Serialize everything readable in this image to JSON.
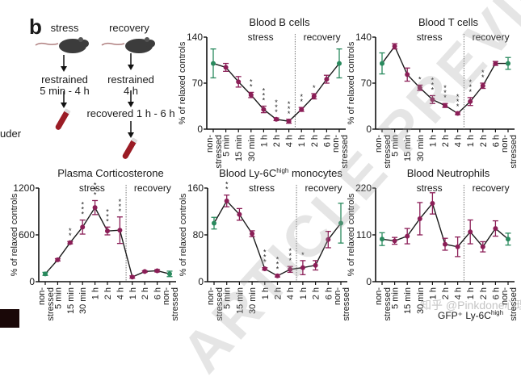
{
  "figure": {
    "panel_letter": "b",
    "left_fragment": "uder",
    "schematic": {
      "stress": {
        "title": "stress",
        "step1": "restrained",
        "step1_detail": "5 min - 4 h"
      },
      "recovery": {
        "title": "recovery",
        "step1": "restrained",
        "step1_detail": "4 h",
        "step2": "recovered 1 h - 6 h"
      }
    },
    "watermark": "ARTICLE PREVIEW",
    "zh_watermark": "知乎 @Pinkdone心理咨询...",
    "footer_label": "GFP⁺ Ly-6C",
    "footer_label_sup": "high",
    "colors": {
      "stress": "#8b1e57",
      "control": "#2a8a5e",
      "line": "#1a1a1a",
      "divider": "#777777"
    }
  },
  "chart_data": [
    {
      "type": "line",
      "id": "bcells",
      "title": "Blood B cells",
      "title_sup": "",
      "title_suffix": "",
      "ylabel": "% of relaxed controls",
      "ylim": [
        0,
        140
      ],
      "yticks": [
        "0",
        "70",
        "140"
      ],
      "ytick_values": [
        0,
        70,
        140
      ],
      "region_labels": [
        "stress",
        "recovery"
      ],
      "categories": [
        "non-\nstressed",
        "5 min",
        "15 min",
        "30 min",
        "1 h",
        "2 h",
        "4 h",
        "1 h",
        "2 h",
        "6 h",
        "non-\nstressed"
      ],
      "values": [
        100,
        94,
        72,
        52,
        30,
        15,
        12,
        30,
        50,
        76,
        100
      ],
      "errors": [
        22,
        6,
        8,
        4,
        5,
        2,
        3,
        3,
        4,
        6,
        22
      ],
      "significance": [
        "",
        "",
        "",
        "**",
        "***",
        "***",
        "***",
        "**",
        "*",
        "",
        ""
      ],
      "groups": [
        "control",
        "stress",
        "stress",
        "stress",
        "stress",
        "stress",
        "stress",
        "stress",
        "stress",
        "stress",
        "control"
      ]
    },
    {
      "type": "line",
      "id": "tcells",
      "title": "Blood T cells",
      "title_sup": "",
      "title_suffix": "",
      "ylabel": "% of relaxed controls",
      "ylim": [
        0,
        140
      ],
      "yticks": [
        "0",
        "70",
        "140"
      ],
      "ytick_values": [
        0,
        70,
        140
      ],
      "region_labels": [
        "stress",
        "recovery"
      ],
      "categories": [
        "non-\nstressed",
        "5 min",
        "15 min",
        "30 min",
        "1 h",
        "2 h",
        "4 h",
        "1 h",
        "2 h",
        "6 h",
        "non-\nstressed"
      ],
      "values": [
        100,
        126,
        83,
        63,
        45,
        36,
        24,
        42,
        66,
        100,
        100
      ],
      "errors": [
        16,
        4,
        10,
        4,
        6,
        3,
        2,
        6,
        4,
        3,
        9
      ],
      "significance": [
        "",
        "",
        "",
        "*",
        "***",
        "***",
        "***",
        "***",
        "**",
        "",
        ""
      ],
      "groups": [
        "control",
        "stress",
        "stress",
        "stress",
        "stress",
        "stress",
        "stress",
        "stress",
        "stress",
        "stress",
        "control"
      ]
    },
    {
      "type": "line",
      "id": "corticosterone",
      "title": "Plasma Corticosterone",
      "title_sup": "",
      "title_suffix": "",
      "ylabel": "% of relaxed controls",
      "ylim": [
        0,
        1200
      ],
      "yticks": [
        "0",
        "600",
        "1200"
      ],
      "ytick_values": [
        0,
        600,
        1200
      ],
      "region_labels": [
        "stress",
        "recovery"
      ],
      "categories": [
        "non-\nstressed",
        "5 min",
        "15 min",
        "30 min",
        "1 h",
        "2 h",
        "4 h",
        "1 h",
        "2 h",
        "6 h",
        "non-\nstressed"
      ],
      "values": [
        100,
        280,
        500,
        700,
        950,
        650,
        660,
        60,
        130,
        140,
        100
      ],
      "errors": [
        20,
        15,
        15,
        90,
        90,
        50,
        170,
        15,
        10,
        15,
        35
      ],
      "significance": [
        "",
        "",
        "**",
        "***",
        "***",
        "***",
        "***",
        "",
        "",
        "",
        ""
      ],
      "groups": [
        "control",
        "stress",
        "stress",
        "stress",
        "stress",
        "stress",
        "stress",
        "stress",
        "stress",
        "stress",
        "control"
      ]
    },
    {
      "type": "line",
      "id": "monocytes",
      "title": "Blood Ly-6C",
      "title_sup": "high",
      "title_suffix": " monocytes",
      "ylabel": "% of relaxed controls",
      "ylim": [
        0,
        160
      ],
      "yticks": [
        "0",
        "80",
        "160"
      ],
      "ytick_values": [
        0,
        80,
        160
      ],
      "region_labels": [
        "stress",
        "recovery"
      ],
      "categories": [
        "non-\nstressed",
        "5 min",
        "15 min",
        "30 min",
        "1 h",
        "2 h",
        "4 h",
        "1 h",
        "2 h",
        "6 h",
        "non-\nstressed"
      ],
      "values": [
        100,
        138,
        115,
        82,
        22,
        10,
        21,
        24,
        28,
        72,
        100
      ],
      "errors": [
        10,
        10,
        10,
        5,
        2,
        2,
        5,
        12,
        8,
        14,
        34
      ],
      "significance": [
        "",
        "**",
        "",
        "",
        "***",
        "***",
        "***",
        "*",
        "",
        "",
        ""
      ],
      "groups": [
        "control",
        "stress",
        "stress",
        "stress",
        "stress",
        "stress",
        "stress",
        "stress",
        "stress",
        "stress",
        "control"
      ]
    },
    {
      "type": "line",
      "id": "neutrophils",
      "title": "Blood Neutrophils",
      "title_sup": "",
      "title_suffix": "",
      "ylabel": "% of relaxed controls",
      "ylim": [
        0,
        220
      ],
      "yticks": [
        "0",
        "110",
        "220"
      ],
      "ytick_values": [
        0,
        110,
        220
      ],
      "region_labels": [
        "stress",
        "recovery"
      ],
      "categories": [
        "non-\nstressed",
        "5 min",
        "15 min",
        "30 min",
        "1 h",
        "2 h",
        "4 h",
        "1 h",
        "2 h",
        "6 h",
        "non-\nstressed"
      ],
      "values": [
        100,
        96,
        107,
        148,
        184,
        88,
        82,
        117,
        82,
        125,
        100
      ],
      "errors": [
        15,
        8,
        18,
        38,
        25,
        14,
        23,
        28,
        12,
        18,
        14
      ],
      "significance": [
        "",
        "",
        "",
        "",
        "",
        "",
        "",
        "",
        "",
        "",
        ""
      ],
      "groups": [
        "control",
        "stress",
        "stress",
        "stress",
        "stress",
        "stress",
        "stress",
        "stress",
        "stress",
        "stress",
        "control"
      ]
    }
  ]
}
